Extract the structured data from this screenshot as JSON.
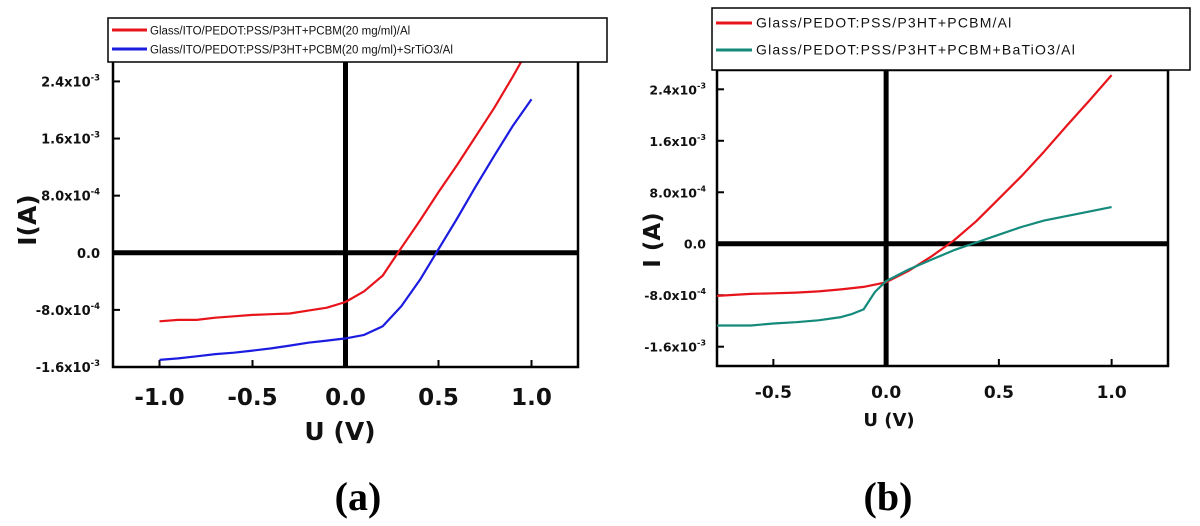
{
  "chart_data": [
    {
      "type": "line",
      "panel_label": "(a)",
      "xlabel": "U (V)",
      "ylabel": "I(A)",
      "xlim": [
        -1.25,
        1.25
      ],
      "ylim": [
        -0.0016,
        0.0027
      ],
      "x_ticks": [
        -1.0,
        -0.5,
        0.0,
        0.5,
        1.0
      ],
      "x_tick_labels": [
        "-1.0",
        "-0.5",
        "0.0",
        "0.5",
        "1.0"
      ],
      "y_ticks": [
        -0.0016,
        -0.0008,
        0.0,
        0.0008,
        0.0016,
        0.0024
      ],
      "y_tick_labels": [
        {
          "base": "-1.6x10",
          "exp": "-3"
        },
        {
          "base": "-8.0x10",
          "exp": "-4"
        },
        {
          "base": "0.0",
          "exp": ""
        },
        {
          "base": "8.0x10",
          "exp": "-4"
        },
        {
          "base": "1.6x10",
          "exp": "-3"
        },
        {
          "base": "2.4x10",
          "exp": "-3"
        }
      ],
      "legend_position": "top",
      "series": [
        {
          "name": "Glass/ITO/PEDOT:PSS/P3HT+PCBM(20 mg/ml)/Al",
          "color": "#e8141c",
          "x": [
            -1.0,
            -0.9,
            -0.8,
            -0.7,
            -0.6,
            -0.5,
            -0.4,
            -0.3,
            -0.2,
            -0.1,
            0.0,
            0.1,
            0.2,
            0.3,
            0.4,
            0.5,
            0.6,
            0.7,
            0.8,
            0.9,
            0.95
          ],
          "y": [
            -0.00096,
            -0.00094,
            -0.00094,
            -0.00091,
            -0.00089,
            -0.00087,
            -0.00086,
            -0.00085,
            -0.00081,
            -0.00077,
            -0.00069,
            -0.00054,
            -0.00032,
            7e-05,
            0.00045,
            0.00085,
            0.00123,
            0.00163,
            0.00203,
            0.00247,
            0.0027
          ]
        },
        {
          "name": "Glass/ITO/PEDOT:PSS/P3HT+PCBM(20 mg/ml)+SrTiO3/Al",
          "color": "#1c1ce0",
          "x": [
            -1.0,
            -0.9,
            -0.8,
            -0.7,
            -0.6,
            -0.5,
            -0.4,
            -0.3,
            -0.2,
            -0.1,
            0.0,
            0.1,
            0.2,
            0.3,
            0.4,
            0.5,
            0.6,
            0.7,
            0.8,
            0.9,
            1.0
          ],
          "y": [
            -0.0015,
            -0.00148,
            -0.00145,
            -0.00142,
            -0.0014,
            -0.00137,
            -0.00134,
            -0.0013,
            -0.00126,
            -0.00123,
            -0.0012,
            -0.00115,
            -0.00103,
            -0.00075,
            -0.00038,
            5e-05,
            0.00048,
            0.00093,
            0.00136,
            0.00178,
            0.00215
          ]
        }
      ]
    },
    {
      "type": "line",
      "panel_label": "(b)",
      "xlabel": "U (V)",
      "ylabel": "I (A)",
      "xlim": [
        -0.75,
        1.25
      ],
      "ylim": [
        -0.0019,
        0.0027
      ],
      "x_ticks": [
        -0.5,
        0.0,
        0.5,
        1.0
      ],
      "x_tick_labels": [
        "-0.5",
        "0.0",
        "0.5",
        "1.0"
      ],
      "y_ticks": [
        -0.0016,
        -0.0008,
        0.0,
        0.0008,
        0.0016,
        0.0024
      ],
      "y_tick_labels": [
        {
          "base": "-1.6x10",
          "exp": "-3"
        },
        {
          "base": "-8.0x10",
          "exp": "-4"
        },
        {
          "base": "0.0",
          "exp": ""
        },
        {
          "base": "8.0x10",
          "exp": "-4"
        },
        {
          "base": "1.6x10",
          "exp": "-3"
        },
        {
          "base": "2.4x10",
          "exp": "-3"
        }
      ],
      "legend_position": "top",
      "series": [
        {
          "name": "Glass/PEDOT:PSS/P3HT+PCBM/Al",
          "color": "#e8141c",
          "x": [
            -0.75,
            -0.6,
            -0.5,
            -0.4,
            -0.3,
            -0.2,
            -0.1,
            0.0,
            0.1,
            0.2,
            0.3,
            0.4,
            0.5,
            0.6,
            0.7,
            0.8,
            0.9,
            1.0
          ],
          "y": [
            -0.00081,
            -0.00078,
            -0.00077,
            -0.00076,
            -0.00074,
            -0.00071,
            -0.00067,
            -0.0006,
            -0.00042,
            -0.0002,
            5e-05,
            0.00035,
            0.0007,
            0.00105,
            0.00143,
            0.00183,
            0.00222,
            0.00262
          ]
        },
        {
          "name": "Glass/PEDOT:PSS/P3HT+PCBM+BaTiO3/Al",
          "color": "#138a7a",
          "x": [
            -0.75,
            -0.6,
            -0.5,
            -0.4,
            -0.3,
            -0.2,
            -0.15,
            -0.1,
            -0.05,
            0.0,
            0.1,
            0.2,
            0.3,
            0.4,
            0.5,
            0.6,
            0.7,
            0.8,
            0.9,
            1.0
          ],
          "y": [
            -0.00127,
            -0.00127,
            -0.00124,
            -0.00122,
            -0.00119,
            -0.00114,
            -0.00109,
            -0.00102,
            -0.00075,
            -0.00058,
            -0.0004,
            -0.00025,
            -0.0001,
            2e-05,
            0.00014,
            0.00026,
            0.00036,
            0.00043,
            0.0005,
            0.00057
          ]
        }
      ]
    }
  ]
}
